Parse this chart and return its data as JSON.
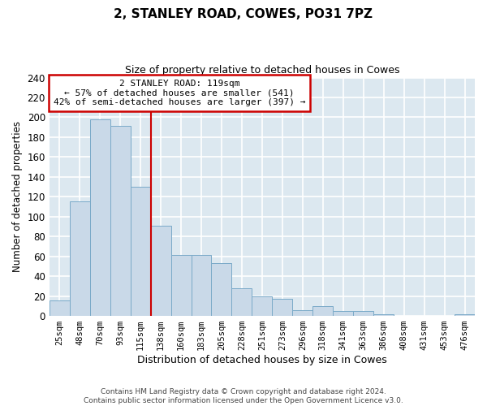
{
  "title": "2, STANLEY ROAD, COWES, PO31 7PZ",
  "subtitle": "Size of property relative to detached houses in Cowes",
  "xlabel": "Distribution of detached houses by size in Cowes",
  "ylabel": "Number of detached properties",
  "bar_labels": [
    "25sqm",
    "48sqm",
    "70sqm",
    "93sqm",
    "115sqm",
    "138sqm",
    "160sqm",
    "183sqm",
    "205sqm",
    "228sqm",
    "251sqm",
    "273sqm",
    "296sqm",
    "318sqm",
    "341sqm",
    "363sqm",
    "386sqm",
    "408sqm",
    "431sqm",
    "453sqm",
    "476sqm"
  ],
  "bar_values": [
    16,
    115,
    198,
    191,
    130,
    91,
    61,
    61,
    53,
    28,
    20,
    17,
    6,
    10,
    5,
    5,
    2,
    0,
    0,
    0,
    2
  ],
  "bar_color": "#c9d9e8",
  "bar_edge_color": "#7aaac8",
  "ylim": [
    0,
    240
  ],
  "yticks": [
    0,
    20,
    40,
    60,
    80,
    100,
    120,
    140,
    160,
    180,
    200,
    220,
    240
  ],
  "property_line_x": 4.5,
  "annotation_title": "2 STANLEY ROAD: 119sqm",
  "annotation_line1": "← 57% of detached houses are smaller (541)",
  "annotation_line2": "42% of semi-detached houses are larger (397) →",
  "annotation_box_color": "#cc0000",
  "background_color": "#dce8f0",
  "grid_color": "#ffffff",
  "footer1": "Contains HM Land Registry data © Crown copyright and database right 2024.",
  "footer2": "Contains public sector information licensed under the Open Government Licence v3.0."
}
